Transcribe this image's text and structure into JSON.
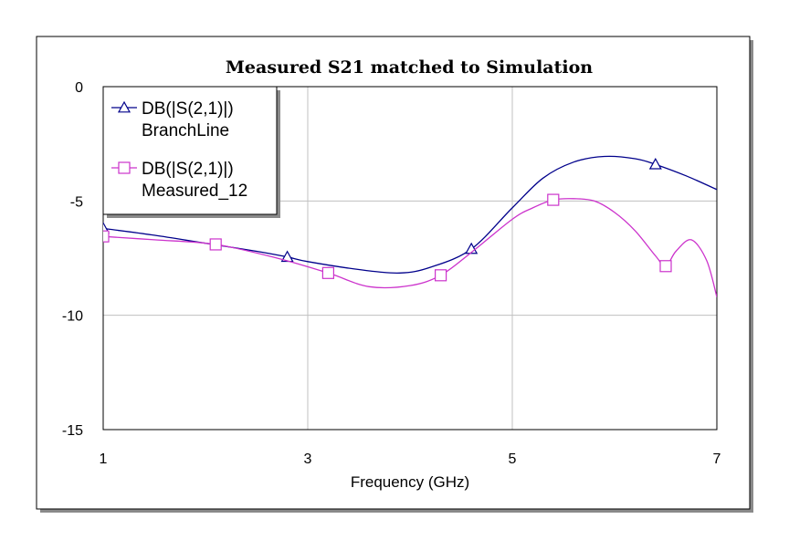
{
  "chart_data": {
    "type": "line",
    "title": "Measured S21 matched to Simulation",
    "xlabel": "Frequency (GHz)",
    "ylabel": "",
    "xlim": [
      1,
      7
    ],
    "ylim": [
      -15,
      0
    ],
    "xticks": [
      1,
      3,
      5,
      7
    ],
    "yticks": [
      0,
      -5,
      -10,
      -15
    ],
    "xtick_labels": [
      "1",
      "3",
      "5",
      "7"
    ],
    "ytick_labels": [
      "0",
      "-5",
      "-10",
      "-15"
    ],
    "grid": true,
    "legend_position": "top-left",
    "series": [
      {
        "name": "DB(|S(2,1)|)",
        "label2": "BranchLine",
        "color": "#00008b",
        "marker": "triangle",
        "x": [
          1.0,
          1.5,
          2.0,
          2.5,
          2.8,
          3.0,
          3.5,
          3.9,
          4.2,
          4.6,
          5.0,
          5.3,
          5.6,
          5.9,
          6.2,
          6.4,
          6.7,
          7.0
        ],
        "y": [
          -6.2,
          -6.5,
          -6.85,
          -7.2,
          -7.45,
          -7.65,
          -8.0,
          -8.15,
          -7.9,
          -7.1,
          -5.3,
          -4.0,
          -3.3,
          -3.05,
          -3.15,
          -3.4,
          -3.9,
          -4.5
        ],
        "marker_x": [
          1.0,
          2.8,
          4.6,
          6.4
        ],
        "marker_y": [
          -6.2,
          -7.45,
          -7.1,
          -3.4
        ]
      },
      {
        "name": "DB(|S(2,1)|)",
        "label2": "Measured_12",
        "color": "#cc33cc",
        "marker": "square",
        "x": [
          1.0,
          1.5,
          2.1,
          2.7,
          3.2,
          3.6,
          4.0,
          4.3,
          4.6,
          5.0,
          5.2,
          5.4,
          5.6,
          5.8,
          6.0,
          6.2,
          6.4,
          6.5,
          6.6,
          6.75,
          6.9,
          7.0
        ],
        "y": [
          -6.55,
          -6.7,
          -6.9,
          -7.5,
          -8.15,
          -8.75,
          -8.7,
          -8.25,
          -7.25,
          -5.8,
          -5.3,
          -4.95,
          -4.9,
          -5.0,
          -5.5,
          -6.3,
          -7.4,
          -7.85,
          -7.2,
          -6.7,
          -7.6,
          -9.2
        ],
        "marker_x": [
          1.0,
          2.1,
          3.2,
          4.3,
          5.4,
          6.5
        ],
        "marker_y": [
          -6.55,
          -6.9,
          -8.15,
          -8.25,
          -4.95,
          -7.85
        ]
      }
    ]
  }
}
